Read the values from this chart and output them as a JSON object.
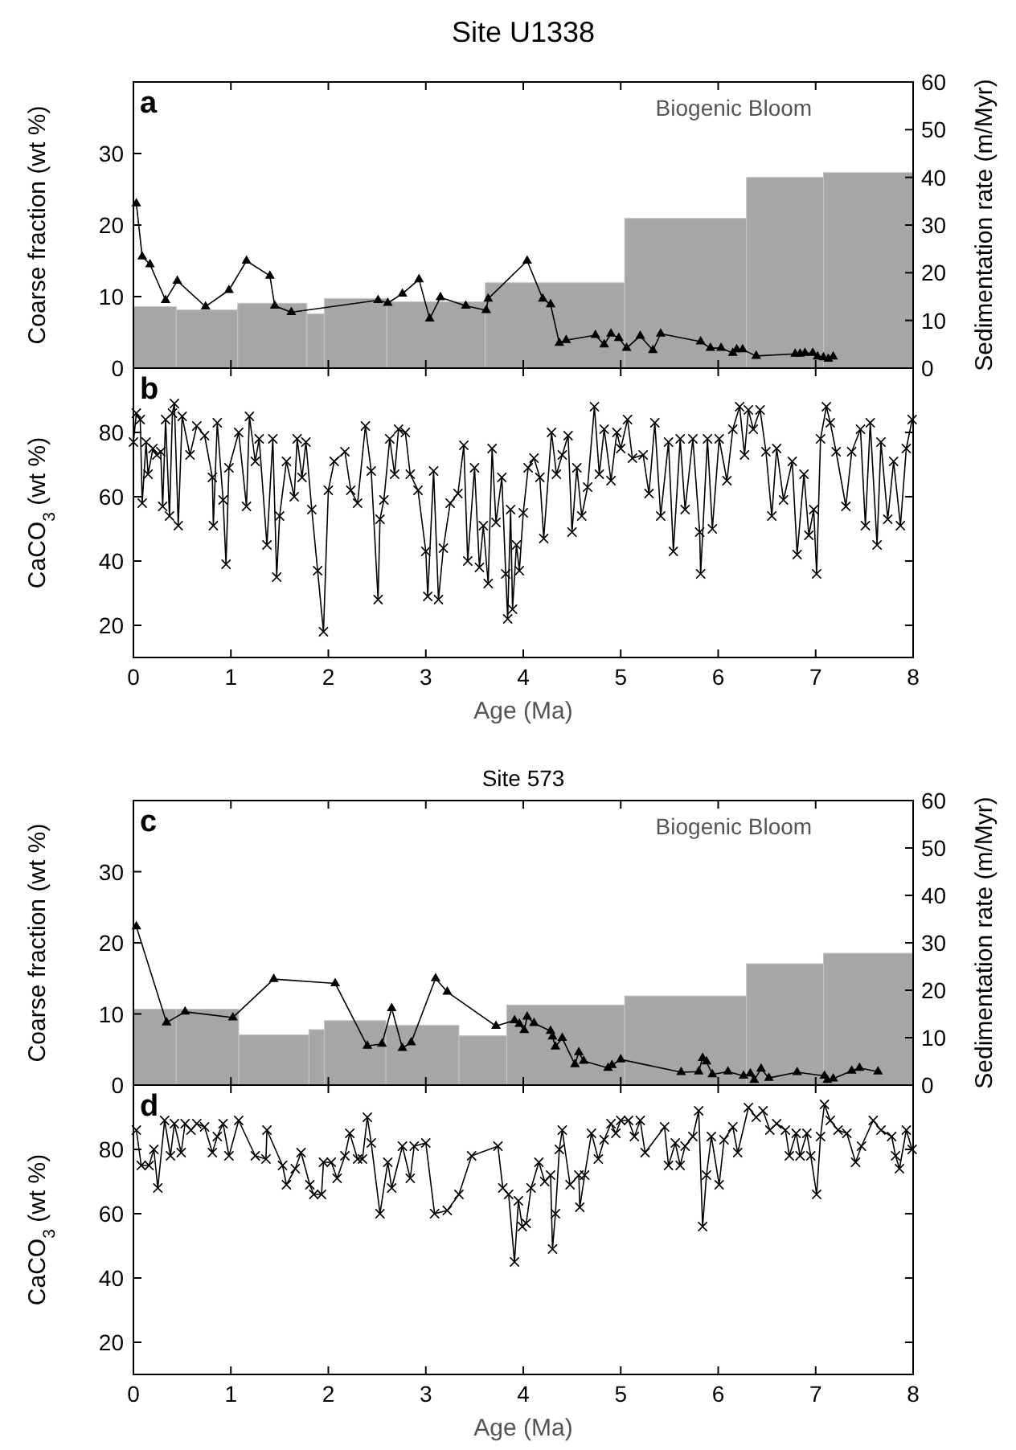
{
  "chart_data": [
    {
      "type": "line",
      "title": "Site U1338",
      "ylabel": "Coarse fraction (wt %)",
      "y2label": "Sedimentation rate (m/Myr)",
      "annotations": [
        "a",
        "Biogenic Bloom"
      ],
      "xlim": [
        0,
        8
      ],
      "xticks": [
        0,
        1,
        2,
        3,
        4,
        5,
        6,
        7,
        8
      ],
      "ylim": [
        0,
        40
      ],
      "yticks": [
        0,
        10,
        20,
        30
      ],
      "y2lim": [
        0,
        60
      ],
      "y2ticks": [
        0,
        10,
        20,
        30,
        40,
        50,
        60
      ],
      "tick_labels": "y",
      "series": [
        {
          "type": "histogram",
          "axis": "y2",
          "color": "#a6a6a6",
          "bins": [
            0,
            0.44,
            1.07,
            1.78,
            1.96,
            2.6,
            3.61,
            5.04,
            6.29,
            7.08,
            8
          ],
          "values": [
            12.9,
            12.2,
            13.6,
            11.4,
            14.6,
            13.9,
            17.9,
            31.4,
            40.0,
            41.0
          ]
        },
        {
          "color": "#000000",
          "marker": "triangle",
          "x": [
            0.03,
            0.09,
            0.17,
            0.33,
            0.45,
            0.74,
            0.98,
            1.16,
            1.4,
            1.45,
            1.62,
            2.51,
            2.61,
            2.76,
            2.93,
            3.04,
            3.15,
            3.41,
            3.62,
            3.64,
            4.04,
            4.2,
            4.28,
            4.37,
            4.44,
            4.74,
            4.83,
            4.9,
            4.98,
            5.06,
            5.2,
            5.33,
            5.41,
            5.82,
            5.92,
            6.03,
            6.15,
            6.19,
            6.25,
            6.39,
            6.79,
            6.84,
            6.89,
            6.97,
            7.02,
            7.08,
            7.13,
            7.18
          ],
          "values": [
            23.0,
            15.6,
            14.5,
            9.5,
            12.2,
            8.6,
            10.9,
            15.0,
            12.9,
            8.7,
            7.8,
            9.5,
            9.1,
            10.4,
            12.4,
            6.9,
            9.9,
            8.7,
            8.1,
            9.7,
            15.0,
            9.7,
            8.9,
            3.5,
            3.9,
            4.6,
            3.3,
            4.8,
            4.2,
            2.8,
            4.5,
            2.5,
            4.8,
            3.7,
            2.8,
            2.8,
            2.1,
            2.6,
            2.6,
            1.7,
            2.0,
            2.0,
            2.1,
            2.1,
            1.6,
            1.5,
            1.3,
            1.6
          ]
        }
      ]
    },
    {
      "type": "line",
      "xlabel": "Age (Ma)",
      "ylabel": "CaCO$_{3}$ (wt %)",
      "annotations": [
        "b"
      ],
      "xlim": [
        0,
        8
      ],
      "xticks": [
        0,
        1,
        2,
        3,
        4,
        5,
        6,
        7,
        8
      ],
      "ylim": [
        10,
        100
      ],
      "yticks": [
        20,
        40,
        60,
        80
      ],
      "series": [
        {
          "color": "#000000",
          "marker": "cross",
          "x": [
            0,
            0.03,
            0.07,
            0.09,
            0.13,
            0.15,
            0.2,
            0.24,
            0.28,
            0.3,
            0.33,
            0.37,
            0.4,
            0.42,
            0.46,
            0.5,
            0.58,
            0.65,
            0.73,
            0.81,
            0.82,
            0.86,
            0.92,
            0.95,
            0.98,
            1.08,
            1.16,
            1.19,
            1.25,
            1.29,
            1.37,
            1.43,
            1.47,
            1.5,
            1.57,
            1.65,
            1.68,
            1.73,
            1.77,
            1.83,
            1.89,
            1.95,
            2.0,
            2.06,
            2.17,
            2.23,
            2.3,
            2.38,
            2.44,
            2.51,
            2.53,
            2.57,
            2.63,
            2.68,
            2.72,
            2.79,
            2.84,
            2.92,
            3.0,
            3.02,
            3.08,
            3.13,
            3.18,
            3.25,
            3.33,
            3.39,
            3.43,
            3.5,
            3.55,
            3.59,
            3.64,
            3.68,
            3.72,
            3.78,
            3.82,
            3.84,
            3.87,
            3.89,
            3.93,
            3.96,
            4.0,
            4.05,
            4.11,
            4.17,
            4.21,
            4.29,
            4.34,
            4.4,
            4.46,
            4.5,
            4.55,
            4.6,
            4.66,
            4.73,
            4.78,
            4.83,
            4.9,
            4.96,
            5.0,
            5.07,
            5.12,
            5.23,
            5.29,
            5.35,
            5.41,
            5.49,
            5.54,
            5.61,
            5.66,
            5.74,
            5.81,
            5.82,
            5.89,
            5.94,
            6.01,
            6.09,
            6.15,
            6.22,
            6.27,
            6.31,
            6.36,
            6.43,
            6.49,
            6.55,
            6.6,
            6.67,
            6.76,
            6.81,
            6.88,
            6.93,
            6.98,
            7.01,
            7.05,
            7.11,
            7.15,
            7.21,
            7.31,
            7.37,
            7.46,
            7.51,
            7.56,
            7.63,
            7.67,
            7.74,
            7.8,
            7.87,
            7.93,
            7.99
          ],
          "values": [
            77,
            86,
            84,
            58,
            77,
            67,
            75,
            73,
            74,
            57,
            84,
            54,
            86,
            89,
            51,
            85,
            73,
            82,
            79,
            66,
            51,
            83,
            59,
            39,
            69,
            80,
            57,
            85,
            71,
            78,
            45,
            78,
            35,
            54,
            71,
            60,
            78,
            66,
            77,
            56,
            37,
            18,
            62,
            71,
            74,
            62,
            58,
            82,
            68,
            28,
            53,
            59,
            78,
            67,
            81,
            80,
            67,
            62,
            43,
            29,
            68,
            28,
            44,
            58,
            61,
            76,
            40,
            69,
            38,
            51,
            33,
            75,
            52,
            66,
            36,
            22,
            56,
            25,
            45,
            37,
            55,
            69,
            72,
            66,
            47,
            80,
            67,
            73,
            79,
            49,
            69,
            54,
            63,
            88,
            67,
            81,
            65,
            80,
            75,
            84,
            72,
            73,
            61,
            83,
            54,
            77,
            43,
            78,
            56,
            78,
            49,
            36,
            78,
            50,
            78,
            65,
            81,
            88,
            73,
            87,
            81,
            87,
            74,
            54,
            75,
            59,
            71,
            42,
            67,
            48,
            56,
            36,
            78,
            88,
            83,
            74,
            57,
            74,
            81,
            51,
            83,
            45,
            77,
            53,
            71,
            51,
            75,
            84
          ]
        }
      ]
    },
    {
      "type": "line",
      "title": "Site 573",
      "ylabel": "Coarse fraction (wt %)",
      "y2label": "Sedimentation rate (m/Myr)",
      "annotations": [
        "c",
        "Biogenic Bloom"
      ],
      "xlim": [
        0,
        8
      ],
      "xticks": [
        0,
        1,
        2,
        3,
        4,
        5,
        6,
        7,
        8
      ],
      "ylim": [
        0,
        40
      ],
      "yticks": [
        0,
        10,
        20,
        30
      ],
      "y2lim": [
        0,
        60
      ],
      "y2ticks": [
        0,
        10,
        20,
        30,
        40,
        50,
        60
      ],
      "tick_labels": "y",
      "series": [
        {
          "type": "histogram",
          "axis": "y2",
          "color": "#a6a6a6",
          "bins": [
            0,
            0.44,
            1.08,
            1.8,
            1.96,
            2.59,
            3.34,
            3.83,
            5.04,
            6.29,
            7.08,
            8
          ],
          "values": [
            16.0,
            16.0,
            10.6,
            11.7,
            13.6,
            12.6,
            10.4,
            16.9,
            18.8,
            25.6,
            27.8
          ]
        },
        {
          "color": "#000000",
          "marker": "triangle",
          "x": [
            0.03,
            0.34,
            0.53,
            1.02,
            1.44,
            2.07,
            2.4,
            2.55,
            2.65,
            2.76,
            2.85,
            3.1,
            3.22,
            3.72,
            3.91,
            3.96,
            4.01,
            4.04,
            4.11,
            4.28,
            4.3,
            4.33,
            4.4,
            4.53,
            4.57,
            4.62,
            4.87,
            4.91,
            5.0,
            5.62,
            5.8,
            5.84,
            5.88,
            5.94,
            6.1,
            6.26,
            6.33,
            6.37,
            6.44,
            6.52,
            6.81,
            7.09,
            7.12,
            7.18,
            7.37,
            7.45,
            7.64
          ],
          "values": [
            22.3,
            8.8,
            10.3,
            9.5,
            14.9,
            14.3,
            5.5,
            5.8,
            10.8,
            5.2,
            6.0,
            15.0,
            13.1,
            8.3,
            9.1,
            8.6,
            7.7,
            9.6,
            8.7,
            7.6,
            6.8,
            5.4,
            6.6,
            2.9,
            4.6,
            3.4,
            2.4,
            2.8,
            3.6,
            1.8,
            1.9,
            3.8,
            3.3,
            1.5,
            1.9,
            1.3,
            1.6,
            0.7,
            2.3,
            1.0,
            1.8,
            1.3,
            0.7,
            0.9,
            2.0,
            2.4,
            1.9
          ]
        }
      ]
    },
    {
      "type": "line",
      "xlabel": "Age (Ma)",
      "ylabel": "CaCO$_{3}$ (wt %)",
      "annotations": [
        "d"
      ],
      "xlim": [
        0,
        8
      ],
      "xticks": [
        0,
        1,
        2,
        3,
        4,
        5,
        6,
        7,
        8
      ],
      "ylim": [
        10,
        100
      ],
      "yticks": [
        20,
        40,
        60,
        80
      ],
      "series": [
        {
          "color": "#000000",
          "marker": "cross",
          "x": [
            0.03,
            0.08,
            0.16,
            0.21,
            0.25,
            0.32,
            0.38,
            0.42,
            0.49,
            0.53,
            0.59,
            0.65,
            0.73,
            0.81,
            0.86,
            0.92,
            0.98,
            1.08,
            1.25,
            1.36,
            1.37,
            1.53,
            1.57,
            1.66,
            1.72,
            1.81,
            1.85,
            1.93,
            1.95,
            2.03,
            2.09,
            2.17,
            2.22,
            2.3,
            2.35,
            2.4,
            2.44,
            2.53,
            2.61,
            2.65,
            2.76,
            2.84,
            2.88,
            3.0,
            3.09,
            3.22,
            3.34,
            3.47,
            3.74,
            3.79,
            3.85,
            3.91,
            3.95,
            3.99,
            4.03,
            4.08,
            4.16,
            4.22,
            4.28,
            4.3,
            4.33,
            4.37,
            4.4,
            4.48,
            4.57,
            4.58,
            4.63,
            4.7,
            4.77,
            4.83,
            4.9,
            4.95,
            5.0,
            5.08,
            5.14,
            5.2,
            5.25,
            5.45,
            5.49,
            5.56,
            5.61,
            5.66,
            5.74,
            5.8,
            5.84,
            5.88,
            5.93,
            6.01,
            6.06,
            6.15,
            6.2,
            6.31,
            6.39,
            6.46,
            6.53,
            6.6,
            6.69,
            6.73,
            6.8,
            6.84,
            6.91,
            6.95,
            7.01,
            7.05,
            7.09,
            7.15,
            7.23,
            7.32,
            7.41,
            7.47,
            7.59,
            7.67,
            7.78,
            7.82,
            7.86,
            7.93,
            7.99
          ],
          "values": [
            86,
            75,
            75,
            80,
            68,
            89,
            78,
            88,
            79,
            88,
            86,
            88,
            87,
            79,
            84,
            88,
            78,
            89,
            78,
            77,
            86,
            75,
            69,
            74,
            79,
            69,
            66,
            66,
            76,
            76,
            71,
            78,
            85,
            77,
            77,
            90,
            82,
            60,
            76,
            68,
            81,
            71,
            81,
            82,
            60,
            61,
            66,
            78,
            81,
            68,
            66,
            45,
            64,
            56,
            57,
            68,
            76,
            70,
            72,
            49,
            60,
            80,
            86,
            69,
            72,
            62,
            72,
            85,
            77,
            83,
            88,
            85,
            89,
            89,
            84,
            89,
            79,
            87,
            75,
            82,
            75,
            81,
            84,
            92,
            56,
            72,
            84,
            69,
            83,
            87,
            79,
            93,
            90,
            92,
            86,
            88,
            86,
            78,
            85,
            78,
            85,
            78,
            66,
            84,
            94,
            89,
            86,
            85,
            76,
            81,
            89,
            86,
            84,
            78,
            74,
            86,
            80
          ]
        }
      ]
    }
  ]
}
